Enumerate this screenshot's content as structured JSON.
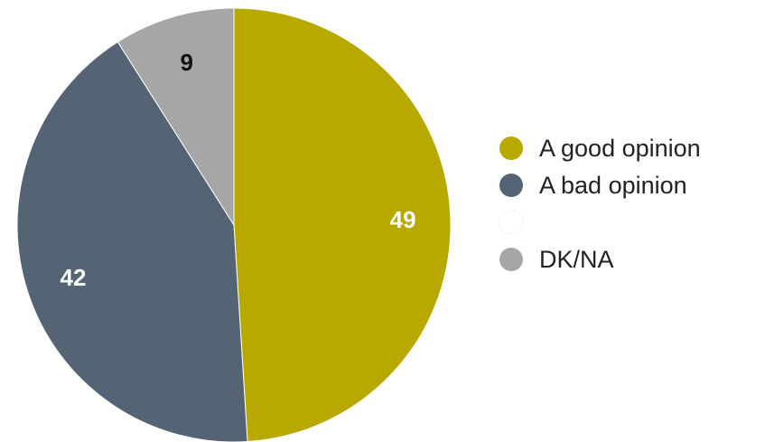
{
  "chart_data": {
    "type": "pie",
    "title": "",
    "start_angle_deg": 0,
    "direction": "clockwise",
    "slices": [
      {
        "name": "A good opinion",
        "value": 49,
        "label": "49",
        "color": "#B8A800",
        "label_color": "#ffffff"
      },
      {
        "name": "A bad opinion",
        "value": 42,
        "label": "42",
        "color": "#546475",
        "label_color": "#ffffff"
      },
      {
        "name": "DK/NA",
        "value": 9,
        "label": "9",
        "color": "#A6A6A6",
        "label_color": "#111111"
      }
    ],
    "legend": {
      "placement": "right",
      "entries": [
        {
          "name": "A good opinion",
          "color": "#B8A800"
        },
        {
          "name": "A bad opinion",
          "color": "#546475"
        },
        {
          "name": "",
          "color": "#ffffff"
        },
        {
          "name": "DK/NA",
          "color": "#A6A6A6"
        }
      ]
    }
  }
}
